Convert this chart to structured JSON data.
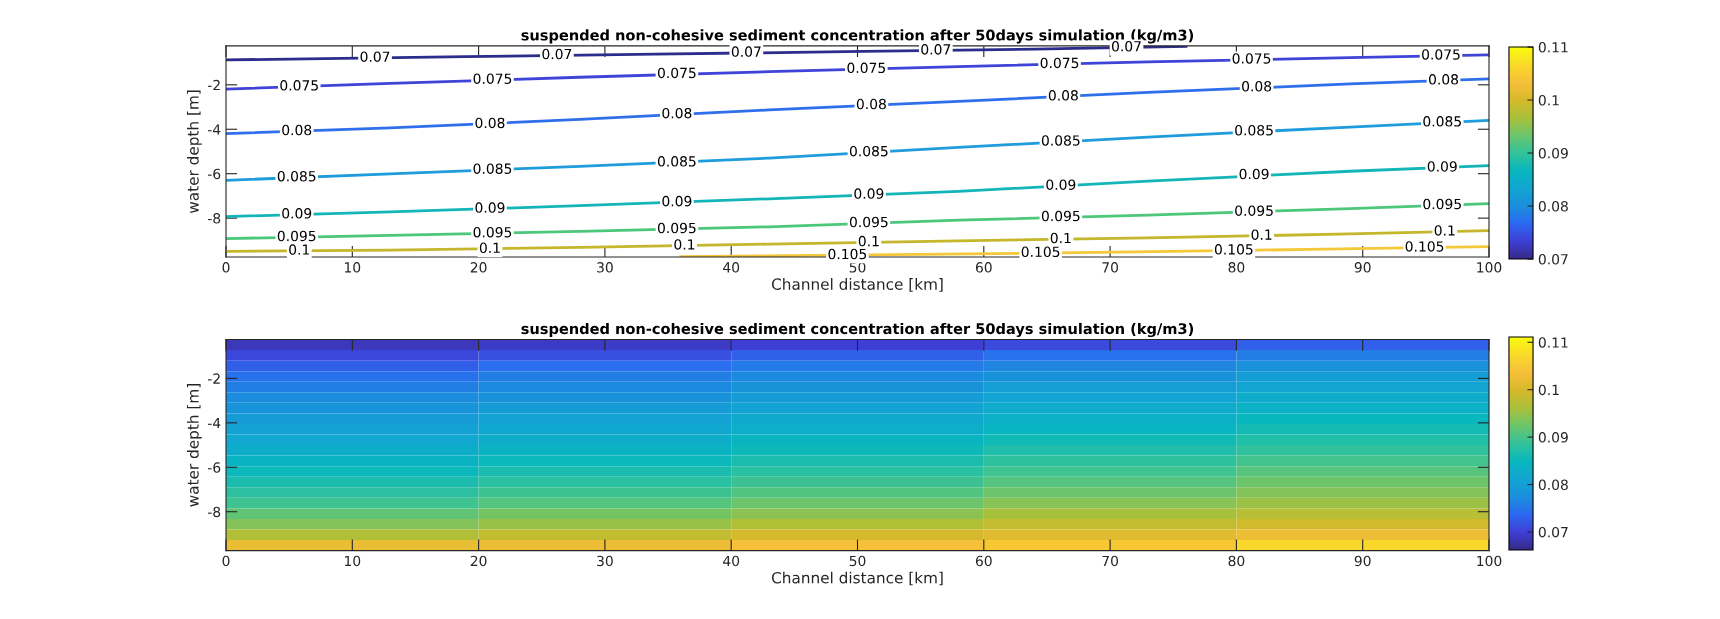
{
  "chart_data": [
    {
      "type": "line",
      "title": "suspended non-cohesive sediment concentration after 50days simulation (kg/m3)",
      "xlabel": "Channel distance [km]",
      "ylabel": "water depth [m]",
      "xlim": [
        0,
        100
      ],
      "xticks": [
        0,
        10,
        20,
        30,
        40,
        50,
        60,
        70,
        80,
        90,
        100
      ],
      "ylim": [
        -9.75,
        -0.25
      ],
      "yticks": [
        {
          "value": -8,
          "label": "-8"
        },
        {
          "value": -6,
          "label": "-6"
        },
        {
          "value": -4,
          "label": "-4"
        },
        {
          "value": -2,
          "label": "-2"
        }
      ],
      "clim": [
        0.07,
        0.11
      ],
      "cticks": [
        0.07,
        0.08,
        0.09,
        0.1,
        0.11
      ],
      "grid": false,
      "legend": false,
      "marker": "none",
      "line_style": "solid",
      "series": [
        {
          "color": "#2c2c8c",
          "x": [
            0,
            19,
            34,
            49,
            64,
            76
          ],
          "values": [
            -0.88,
            -0.73,
            -0.62,
            -0.51,
            -0.39,
            -0.27
          ]
        },
        {
          "color": "#3f44d8",
          "x": [
            0,
            13,
            28,
            43,
            58,
            73,
            89,
            100
          ],
          "values": [
            -2.19,
            -1.94,
            -1.66,
            -1.41,
            -1.18,
            -0.97,
            -0.78,
            -0.65
          ]
        },
        {
          "color": "#2f6fec",
          "x": [
            0,
            13,
            28,
            43,
            58,
            73,
            89,
            100
          ],
          "values": [
            -4.2,
            -3.94,
            -3.56,
            -3.13,
            -2.75,
            -2.34,
            -1.96,
            -1.73
          ]
        },
        {
          "color": "#1e9cdc",
          "x": [
            0,
            13,
            28,
            43,
            58,
            73,
            89,
            100
          ],
          "values": [
            -6.3,
            -6.01,
            -5.67,
            -5.3,
            -4.82,
            -4.35,
            -3.9,
            -3.6
          ]
        },
        {
          "color": "#13b5b8",
          "x": [
            0,
            13,
            28,
            43,
            58,
            73,
            89,
            100
          ],
          "values": [
            -7.93,
            -7.72,
            -7.44,
            -7.13,
            -6.8,
            -6.33,
            -5.89,
            -5.64
          ]
        },
        {
          "color": "#4dc77a",
          "x": [
            0,
            13,
            28,
            43,
            58,
            73,
            89,
            100
          ],
          "values": [
            -8.92,
            -8.78,
            -8.6,
            -8.39,
            -8.09,
            -7.86,
            -7.57,
            -7.35
          ]
        },
        {
          "color": "#c4b72c",
          "x": [
            0,
            13,
            28,
            43,
            58,
            73,
            89,
            100
          ],
          "values": [
            -9.5,
            -9.44,
            -9.32,
            -9.17,
            -9.02,
            -8.89,
            -8.71,
            -8.56
          ]
        },
        {
          "color": "#f5c83a",
          "x": [
            36,
            42,
            57,
            72,
            87,
            100
          ],
          "values": [
            -9.73,
            -9.7,
            -9.62,
            -9.52,
            -9.4,
            -9.28
          ]
        }
      ],
      "annotations": [
        {
          "text": "0.07",
          "x": 11.8,
          "y": -0.79
        },
        {
          "text": "0.07",
          "x": 26.2,
          "y": -0.67
        },
        {
          "text": "0.07",
          "x": 41.2,
          "y": -0.56
        },
        {
          "text": "0.07",
          "x": 56.2,
          "y": -0.46
        },
        {
          "text": "0.07",
          "x": 71.3,
          "y": -0.32
        },
        {
          "text": "0.075",
          "x": 5.8,
          "y": -2.08
        },
        {
          "text": "0.075",
          "x": 21.1,
          "y": -1.78
        },
        {
          "text": "0.075",
          "x": 35.7,
          "y": -1.52
        },
        {
          "text": "0.075",
          "x": 50.7,
          "y": -1.29
        },
        {
          "text": "0.075",
          "x": 66.0,
          "y": -1.07
        },
        {
          "text": "0.075",
          "x": 81.2,
          "y": -0.87
        },
        {
          "text": "0.075",
          "x": 96.2,
          "y": -0.69
        },
        {
          "text": "0.08",
          "x": 5.6,
          "y": -4.09
        },
        {
          "text": "0.08",
          "x": 20.9,
          "y": -3.77
        },
        {
          "text": "0.08",
          "x": 35.7,
          "y": -3.33
        },
        {
          "text": "0.08",
          "x": 51.1,
          "y": -2.92
        },
        {
          "text": "0.08",
          "x": 66.3,
          "y": -2.53
        },
        {
          "text": "0.08",
          "x": 81.6,
          "y": -2.12
        },
        {
          "text": "0.08",
          "x": 96.4,
          "y": -1.81
        },
        {
          "text": "0.085",
          "x": 5.6,
          "y": -6.17
        },
        {
          "text": "0.085",
          "x": 21.1,
          "y": -5.83
        },
        {
          "text": "0.085",
          "x": 35.7,
          "y": -5.5
        },
        {
          "text": "0.085",
          "x": 50.9,
          "y": -5.04
        },
        {
          "text": "0.085",
          "x": 66.1,
          "y": -4.56
        },
        {
          "text": "0.085",
          "x": 81.4,
          "y": -4.1
        },
        {
          "text": "0.085",
          "x": 96.3,
          "y": -3.7
        },
        {
          "text": "0.09",
          "x": 5.6,
          "y": -7.84
        },
        {
          "text": "0.09",
          "x": 20.9,
          "y": -7.58
        },
        {
          "text": "0.09",
          "x": 35.7,
          "y": -7.29
        },
        {
          "text": "0.09",
          "x": 50.9,
          "y": -6.95
        },
        {
          "text": "0.09",
          "x": 66.1,
          "y": -6.55
        },
        {
          "text": "0.09",
          "x": 81.4,
          "y": -6.07
        },
        {
          "text": "0.09",
          "x": 96.3,
          "y": -5.73
        },
        {
          "text": "0.095",
          "x": 5.6,
          "y": -8.86
        },
        {
          "text": "0.095",
          "x": 21.1,
          "y": -8.69
        },
        {
          "text": "0.095",
          "x": 35.7,
          "y": -8.5
        },
        {
          "text": "0.095",
          "x": 50.9,
          "y": -8.23
        },
        {
          "text": "0.095",
          "x": 66.1,
          "y": -7.96
        },
        {
          "text": "0.095",
          "x": 81.4,
          "y": -7.72
        },
        {
          "text": "0.095",
          "x": 96.3,
          "y": -7.42
        },
        {
          "text": "0.1",
          "x": 5.8,
          "y": -9.47
        },
        {
          "text": "0.1",
          "x": 20.9,
          "y": -9.39
        },
        {
          "text": "0.1",
          "x": 36.3,
          "y": -9.24
        },
        {
          "text": "0.1",
          "x": 50.9,
          "y": -9.09
        },
        {
          "text": "0.1",
          "x": 66.1,
          "y": -8.95
        },
        {
          "text": "0.1",
          "x": 82.0,
          "y": -8.8
        },
        {
          "text": "0.1",
          "x": 96.5,
          "y": -8.61
        },
        {
          "text": "0.105",
          "x": 49.2,
          "y": -9.67
        },
        {
          "text": "0.105",
          "x": 64.5,
          "y": -9.57
        },
        {
          "text": "0.105",
          "x": 79.8,
          "y": -9.46
        },
        {
          "text": "0.105",
          "x": 94.9,
          "y": -9.33
        }
      ]
    },
    {
      "type": "heatmap",
      "title": "suspended non-cohesive sediment concentration after 50days simulation (kg/m3)",
      "xlabel": "Channel distance [km]",
      "ylabel": "water depth [m]",
      "xlim": [
        0,
        100
      ],
      "xticks": [
        0,
        10,
        20,
        30,
        40,
        50,
        60,
        70,
        80,
        90,
        100
      ],
      "ylim": [
        -9.75,
        -0.25
      ],
      "yticks": [
        {
          "value": -8,
          "label": "-8"
        },
        {
          "value": -6,
          "label": "-6"
        },
        {
          "value": -4,
          "label": "-4"
        },
        {
          "value": -2,
          "label": "-2"
        }
      ],
      "clim": [
        0.0662,
        0.1111
      ],
      "cticks": [
        0.07,
        0.08,
        0.09,
        0.1,
        0.11
      ],
      "x": [
        10,
        30,
        50,
        70,
        90
      ],
      "y": [
        -0.49,
        -0.96,
        -1.44,
        -1.91,
        -2.39,
        -2.86,
        -3.34,
        -3.81,
        -4.29,
        -4.76,
        -5.24,
        -5.71,
        -6.19,
        -6.66,
        -7.14,
        -7.61,
        -8.09,
        -8.56,
        -9.04,
        -9.51
      ],
      "cells": [
        [
          0.0687,
          0.0692,
          0.07,
          0.0711,
          0.073
        ],
        [
          0.0707,
          0.0716,
          0.0729,
          0.0746,
          0.0758
        ],
        [
          0.0727,
          0.0741,
          0.0754,
          0.0765,
          0.0779
        ],
        [
          0.0746,
          0.0758,
          0.0769,
          0.0782,
          0.0799
        ],
        [
          0.076,
          0.077,
          0.0783,
          0.0799,
          0.0812
        ],
        [
          0.0772,
          0.0783,
          0.0797,
          0.0811,
          0.0824
        ],
        [
          0.0784,
          0.0796,
          0.0809,
          0.0823,
          0.0836
        ],
        [
          0.0795,
          0.0807,
          0.082,
          0.0834,
          0.0848
        ],
        [
          0.0807,
          0.0819,
          0.0831,
          0.0846,
          0.086
        ],
        [
          0.0818,
          0.083,
          0.0843,
          0.0858,
          0.0872
        ],
        [
          0.083,
          0.0841,
          0.0854,
          0.087,
          0.0884
        ],
        [
          0.0841,
          0.0853,
          0.0866,
          0.0882,
          0.0896
        ],
        [
          0.0853,
          0.0866,
          0.0879,
          0.0894,
          0.091
        ],
        [
          0.0867,
          0.0879,
          0.0892,
          0.0908,
          0.0924
        ],
        [
          0.0881,
          0.0893,
          0.0906,
          0.0924,
          0.0938
        ],
        [
          0.0895,
          0.0909,
          0.0925,
          0.094,
          0.0953
        ],
        [
          0.0915,
          0.0929,
          0.0944,
          0.0959,
          0.0973
        ],
        [
          0.0938,
          0.095,
          0.0968,
          0.0982,
          0.0994
        ],
        [
          0.0968,
          0.0982,
          0.0996,
          0.101,
          0.1025
        ],
        [
          0.102,
          0.1025,
          0.1036,
          0.1048,
          0.107
        ]
      ]
    }
  ]
}
